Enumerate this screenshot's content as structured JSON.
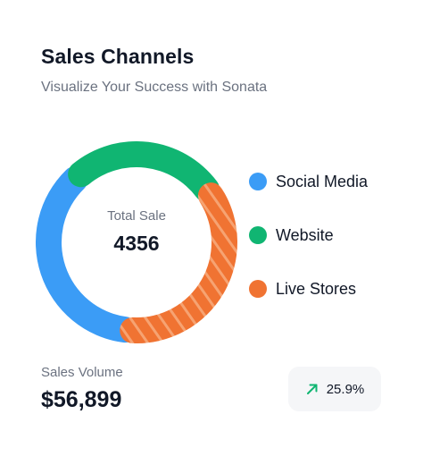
{
  "card": {
    "title": "Sales Channels",
    "subtitle": "Visualize Your Success with Sonata"
  },
  "chart_data": {
    "type": "pie",
    "variant": "donut",
    "center_label": "Total Sale",
    "center_value": "4356",
    "series": [
      {
        "name": "Social Media",
        "share": 0.37,
        "color": "#3b9cf6"
      },
      {
        "name": "Website",
        "share": 0.27,
        "color": "#10b572"
      },
      {
        "name": "Live Stores",
        "share": 0.36,
        "color": "#f07332",
        "pattern": "diagonal-stripes"
      }
    ],
    "legend_position": "right"
  },
  "legend": [
    {
      "label": "Social Media",
      "color": "#3b9cf6"
    },
    {
      "label": "Website",
      "color": "#10b572"
    },
    {
      "label": "Live Stores",
      "color": "#f07332"
    }
  ],
  "summary": {
    "volume_label": "Sales Volume",
    "volume_value": "$56,899",
    "trend_icon": "arrow-up-right-icon",
    "trend_value": "25.9%",
    "trend_color": "#10b572"
  }
}
